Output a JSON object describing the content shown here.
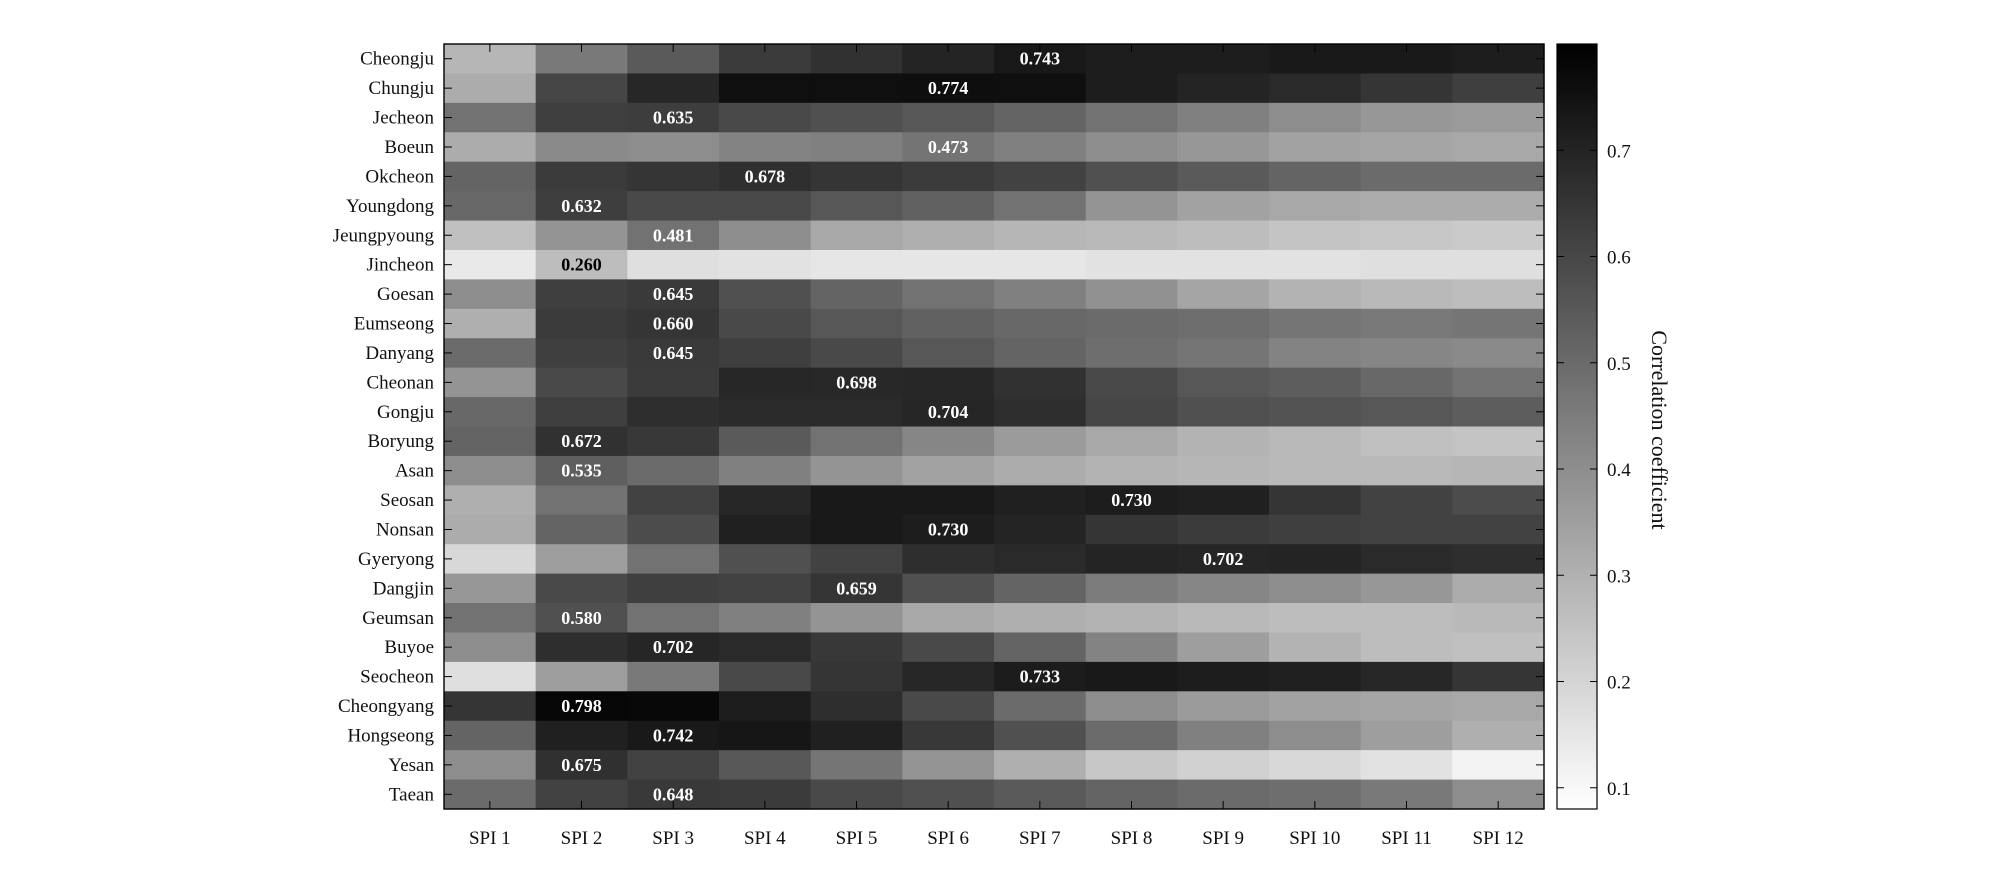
{
  "chart_data": {
    "type": "heatmap",
    "title": "",
    "xlabel": "",
    "ylabel": "",
    "columns": [
      "SPI  1",
      "SPI  2",
      "SPI  3",
      "SPI  4",
      "SPI  5",
      "SPI  6",
      "SPI  7",
      "SPI  8",
      "SPI  9",
      "SPI  10",
      "SPI  11",
      "SPI  12"
    ],
    "rows": [
      "Cheongju",
      "Chungju",
      "Jecheon",
      "Boeun",
      "Okcheon",
      "Youngdong",
      "Jeungpyoung",
      "Jincheon",
      "Goesan",
      "Eumseong",
      "Danyang",
      "Cheonan",
      "Gongju",
      "Boryung",
      "Asan",
      "Seosan",
      "Nonsan",
      "Gyeryong",
      "Dangjin",
      "Geumsan",
      "Buyoe",
      "Seocheon",
      "Cheongyang",
      "Hongseong",
      "Yesan",
      "Taean"
    ],
    "values": [
      [
        0.28,
        0.46,
        0.55,
        0.64,
        0.67,
        0.71,
        0.743,
        0.73,
        0.73,
        0.74,
        0.74,
        0.73
      ],
      [
        0.31,
        0.61,
        0.7,
        0.77,
        0.77,
        0.774,
        0.77,
        0.73,
        0.71,
        0.69,
        0.66,
        0.63
      ],
      [
        0.48,
        0.63,
        0.635,
        0.6,
        0.58,
        0.56,
        0.52,
        0.48,
        0.44,
        0.4,
        0.37,
        0.36
      ],
      [
        0.31,
        0.41,
        0.4,
        0.43,
        0.44,
        0.473,
        0.44,
        0.4,
        0.37,
        0.34,
        0.33,
        0.32
      ],
      [
        0.52,
        0.64,
        0.66,
        0.678,
        0.66,
        0.64,
        0.62,
        0.58,
        0.55,
        0.52,
        0.5,
        0.5
      ],
      [
        0.51,
        0.632,
        0.6,
        0.6,
        0.56,
        0.53,
        0.48,
        0.38,
        0.34,
        0.32,
        0.31,
        0.31
      ],
      [
        0.25,
        0.38,
        0.481,
        0.4,
        0.32,
        0.3,
        0.28,
        0.27,
        0.26,
        0.24,
        0.23,
        0.22
      ],
      [
        0.13,
        0.26,
        0.16,
        0.15,
        0.14,
        0.14,
        0.14,
        0.15,
        0.15,
        0.15,
        0.16,
        0.16
      ],
      [
        0.4,
        0.63,
        0.645,
        0.58,
        0.52,
        0.48,
        0.44,
        0.39,
        0.33,
        0.29,
        0.27,
        0.26
      ],
      [
        0.3,
        0.64,
        0.66,
        0.6,
        0.56,
        0.53,
        0.51,
        0.5,
        0.49,
        0.47,
        0.46,
        0.47
      ],
      [
        0.5,
        0.63,
        0.645,
        0.63,
        0.6,
        0.56,
        0.52,
        0.49,
        0.47,
        0.43,
        0.42,
        0.41
      ],
      [
        0.38,
        0.6,
        0.64,
        0.7,
        0.698,
        0.7,
        0.67,
        0.6,
        0.56,
        0.54,
        0.51,
        0.48
      ],
      [
        0.51,
        0.63,
        0.68,
        0.69,
        0.69,
        0.704,
        0.68,
        0.61,
        0.58,
        0.57,
        0.56,
        0.54
      ],
      [
        0.52,
        0.672,
        0.65,
        0.55,
        0.48,
        0.42,
        0.36,
        0.32,
        0.29,
        0.27,
        0.25,
        0.24
      ],
      [
        0.4,
        0.535,
        0.5,
        0.44,
        0.38,
        0.34,
        0.31,
        0.29,
        0.28,
        0.27,
        0.27,
        0.28
      ],
      [
        0.3,
        0.48,
        0.62,
        0.7,
        0.74,
        0.74,
        0.72,
        0.73,
        0.72,
        0.66,
        0.62,
        0.59
      ],
      [
        0.31,
        0.52,
        0.59,
        0.72,
        0.74,
        0.73,
        0.71,
        0.66,
        0.64,
        0.63,
        0.62,
        0.62
      ],
      [
        0.18,
        0.35,
        0.48,
        0.58,
        0.62,
        0.68,
        0.69,
        0.71,
        0.702,
        0.71,
        0.69,
        0.68
      ],
      [
        0.37,
        0.6,
        0.63,
        0.62,
        0.659,
        0.58,
        0.52,
        0.45,
        0.42,
        0.4,
        0.37,
        0.31
      ],
      [
        0.48,
        0.58,
        0.48,
        0.44,
        0.38,
        0.32,
        0.3,
        0.29,
        0.27,
        0.26,
        0.26,
        0.27
      ],
      [
        0.4,
        0.68,
        0.702,
        0.69,
        0.65,
        0.6,
        0.52,
        0.43,
        0.35,
        0.29,
        0.26,
        0.25
      ],
      [
        0.16,
        0.35,
        0.46,
        0.6,
        0.66,
        0.7,
        0.733,
        0.74,
        0.73,
        0.72,
        0.7,
        0.66
      ],
      [
        0.66,
        0.798,
        0.79,
        0.73,
        0.68,
        0.6,
        0.5,
        0.4,
        0.36,
        0.34,
        0.33,
        0.32
      ],
      [
        0.52,
        0.72,
        0.742,
        0.75,
        0.72,
        0.65,
        0.58,
        0.5,
        0.44,
        0.4,
        0.35,
        0.3
      ],
      [
        0.4,
        0.675,
        0.62,
        0.56,
        0.47,
        0.38,
        0.3,
        0.23,
        0.2,
        0.18,
        0.15,
        0.1
      ],
      [
        0.5,
        0.62,
        0.648,
        0.64,
        0.6,
        0.58,
        0.55,
        0.52,
        0.5,
        0.49,
        0.46,
        0.4
      ]
    ],
    "annotations": [
      {
        "row": 0,
        "col": 6,
        "text": "0.743"
      },
      {
        "row": 1,
        "col": 5,
        "text": "0.774"
      },
      {
        "row": 2,
        "col": 2,
        "text": "0.635"
      },
      {
        "row": 3,
        "col": 5,
        "text": "0.473"
      },
      {
        "row": 4,
        "col": 3,
        "text": "0.678"
      },
      {
        "row": 5,
        "col": 1,
        "text": "0.632"
      },
      {
        "row": 6,
        "col": 2,
        "text": "0.481"
      },
      {
        "row": 7,
        "col": 1,
        "text": "0.260"
      },
      {
        "row": 8,
        "col": 2,
        "text": "0.645"
      },
      {
        "row": 9,
        "col": 2,
        "text": "0.660"
      },
      {
        "row": 10,
        "col": 2,
        "text": "0.645"
      },
      {
        "row": 11,
        "col": 4,
        "text": "0.698"
      },
      {
        "row": 12,
        "col": 5,
        "text": "0.704"
      },
      {
        "row": 13,
        "col": 1,
        "text": "0.672"
      },
      {
        "row": 14,
        "col": 1,
        "text": "0.535"
      },
      {
        "row": 15,
        "col": 7,
        "text": "0.730"
      },
      {
        "row": 16,
        "col": 5,
        "text": "0.730"
      },
      {
        "row": 17,
        "col": 8,
        "text": "0.702"
      },
      {
        "row": 18,
        "col": 4,
        "text": "0.659"
      },
      {
        "row": 19,
        "col": 1,
        "text": "0.580"
      },
      {
        "row": 20,
        "col": 2,
        "text": "0.702"
      },
      {
        "row": 21,
        "col": 6,
        "text": "0.733"
      },
      {
        "row": 22,
        "col": 1,
        "text": "0.798"
      },
      {
        "row": 23,
        "col": 2,
        "text": "0.742"
      },
      {
        "row": 24,
        "col": 1,
        "text": "0.675"
      },
      {
        "row": 25,
        "col": 2,
        "text": "0.648"
      }
    ],
    "colorbar": {
      "label": "Correlation coefficient",
      "range": [
        0.08,
        0.8
      ],
      "ticks": [
        0.1,
        0.2,
        0.3,
        0.4,
        0.5,
        0.6,
        0.7
      ],
      "tick_labels": [
        "0.1",
        "0.2",
        "0.3",
        "0.4",
        "0.5",
        "0.6",
        "0.7"
      ],
      "colormap": "gray-reversed (white = low, black = high)"
    },
    "grid": false
  }
}
